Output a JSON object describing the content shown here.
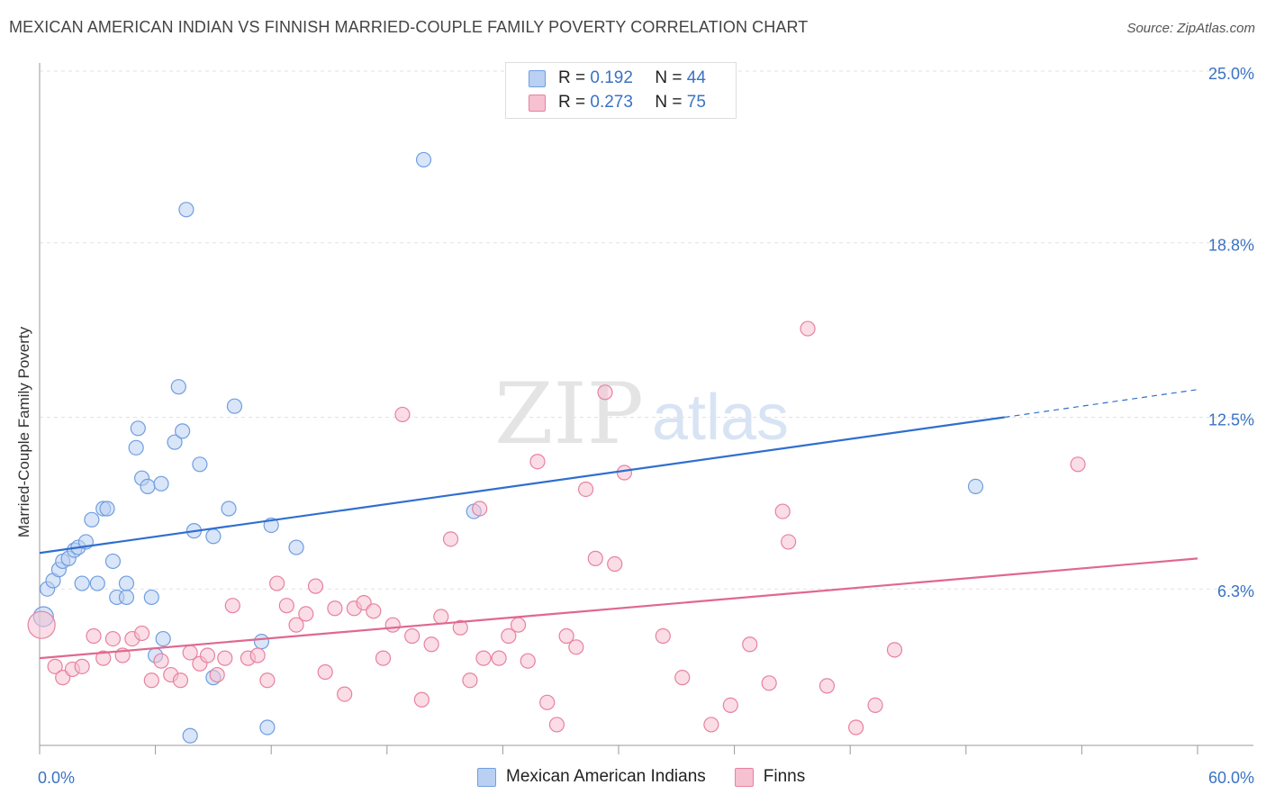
{
  "title": "MEXICAN AMERICAN INDIAN VS FINNISH MARRIED-COUPLE FAMILY POVERTY CORRELATION CHART",
  "source": "Source: ZipAtlas.com",
  "watermark": {
    "zip": "ZIP",
    "atlas": "atlas"
  },
  "legend": {
    "series1": {
      "r_label": "R =",
      "r_value": "0.192",
      "n_label": "N =",
      "n_value": "44"
    },
    "series2": {
      "r_label": "R =",
      "r_value": "0.273",
      "n_label": "N =",
      "n_value": "75"
    }
  },
  "chart_data": {
    "type": "scatter",
    "xlabel": "",
    "ylabel": "Married-Couple Family Poverty",
    "xlim": [
      0,
      60
    ],
    "ylim": [
      0,
      25
    ],
    "x_tick_labels": [
      "0.0%",
      "60.0%"
    ],
    "y_ticks": [
      6.3,
      12.5,
      18.8,
      25.0
    ],
    "y_tick_labels": [
      "6.3%",
      "12.5%",
      "18.8%",
      "25.0%"
    ],
    "grid": true,
    "legend_position": "bottom",
    "series": [
      {
        "name": "Mexican American Indians",
        "color": "#6f9ee0",
        "fill": "#b9d0f3",
        "trend": {
          "x0": 0,
          "y0": 7.6,
          "x1": 50,
          "y1": 12.5,
          "dash_to": [
            60,
            13.5
          ]
        },
        "points": [
          [
            0.2,
            5.3
          ],
          [
            0.4,
            6.3
          ],
          [
            0.7,
            6.6
          ],
          [
            1.0,
            7.0
          ],
          [
            1.2,
            7.3
          ],
          [
            1.5,
            7.4
          ],
          [
            1.8,
            7.7
          ],
          [
            2.0,
            7.8
          ],
          [
            2.2,
            6.5
          ],
          [
            2.4,
            8.0
          ],
          [
            2.7,
            8.8
          ],
          [
            3.0,
            6.5
          ],
          [
            3.3,
            9.2
          ],
          [
            3.5,
            9.2
          ],
          [
            3.8,
            7.3
          ],
          [
            4.0,
            6.0
          ],
          [
            4.5,
            6.0
          ],
          [
            4.5,
            6.5
          ],
          [
            5.0,
            11.4
          ],
          [
            5.1,
            12.1
          ],
          [
            5.3,
            10.3
          ],
          [
            5.6,
            10.0
          ],
          [
            5.8,
            6.0
          ],
          [
            6.0,
            3.9
          ],
          [
            6.3,
            10.1
          ],
          [
            6.4,
            4.5
          ],
          [
            7.0,
            11.6
          ],
          [
            7.2,
            13.6
          ],
          [
            7.4,
            12.0
          ],
          [
            7.6,
            20.0
          ],
          [
            7.8,
            1.0
          ],
          [
            8.0,
            8.4
          ],
          [
            8.3,
            10.8
          ],
          [
            9.0,
            3.1
          ],
          [
            9.0,
            8.2
          ],
          [
            9.8,
            9.2
          ],
          [
            10.1,
            12.9
          ],
          [
            11.5,
            4.4
          ],
          [
            11.8,
            1.3
          ],
          [
            12.0,
            8.6
          ],
          [
            13.3,
            7.8
          ],
          [
            19.9,
            21.8
          ],
          [
            22.5,
            9.1
          ],
          [
            48.5,
            10.0
          ]
        ]
      },
      {
        "name": "Finns",
        "color": "#e8819f",
        "fill": "#f6c1d1",
        "trend": {
          "x0": 0,
          "y0": 3.8,
          "x1": 60,
          "y1": 7.4
        },
        "points": [
          [
            0.1,
            5.0
          ],
          [
            0.8,
            3.5
          ],
          [
            1.2,
            3.1
          ],
          [
            1.7,
            3.4
          ],
          [
            2.2,
            3.5
          ],
          [
            2.8,
            4.6
          ],
          [
            3.3,
            3.8
          ],
          [
            3.8,
            4.5
          ],
          [
            4.3,
            3.9
          ],
          [
            4.8,
            4.5
          ],
          [
            5.3,
            4.7
          ],
          [
            5.8,
            3.0
          ],
          [
            6.3,
            3.7
          ],
          [
            6.8,
            3.2
          ],
          [
            7.3,
            3.0
          ],
          [
            7.8,
            4.0
          ],
          [
            8.3,
            3.6
          ],
          [
            8.7,
            3.9
          ],
          [
            9.2,
            3.2
          ],
          [
            9.6,
            3.8
          ],
          [
            10.0,
            5.7
          ],
          [
            10.8,
            3.8
          ],
          [
            11.3,
            3.9
          ],
          [
            11.8,
            3.0
          ],
          [
            12.3,
            6.5
          ],
          [
            12.8,
            5.7
          ],
          [
            13.3,
            5.0
          ],
          [
            13.8,
            5.4
          ],
          [
            14.3,
            6.4
          ],
          [
            14.8,
            3.3
          ],
          [
            15.3,
            5.6
          ],
          [
            15.8,
            2.5
          ],
          [
            16.3,
            5.6
          ],
          [
            16.8,
            5.8
          ],
          [
            17.3,
            5.5
          ],
          [
            17.8,
            3.8
          ],
          [
            18.3,
            5.0
          ],
          [
            18.8,
            12.6
          ],
          [
            19.3,
            4.6
          ],
          [
            19.8,
            2.3
          ],
          [
            20.3,
            4.3
          ],
          [
            20.8,
            5.3
          ],
          [
            21.3,
            8.1
          ],
          [
            21.8,
            4.9
          ],
          [
            22.3,
            3.0
          ],
          [
            22.8,
            9.2
          ],
          [
            23.0,
            3.8
          ],
          [
            23.8,
            3.8
          ],
          [
            24.3,
            4.6
          ],
          [
            24.8,
            5.0
          ],
          [
            25.3,
            3.7
          ],
          [
            25.8,
            10.9
          ],
          [
            26.3,
            2.2
          ],
          [
            26.8,
            1.4
          ],
          [
            27.3,
            4.6
          ],
          [
            27.8,
            4.2
          ],
          [
            28.3,
            9.9
          ],
          [
            28.8,
            7.4
          ],
          [
            29.3,
            13.4
          ],
          [
            29.8,
            7.2
          ],
          [
            30.3,
            10.5
          ],
          [
            32.3,
            4.6
          ],
          [
            33.3,
            3.1
          ],
          [
            34.8,
            1.4
          ],
          [
            35.8,
            2.1
          ],
          [
            36.8,
            4.3
          ],
          [
            37.8,
            2.9
          ],
          [
            38.5,
            9.1
          ],
          [
            38.8,
            8.0
          ],
          [
            39.8,
            15.7
          ],
          [
            40.8,
            2.8
          ],
          [
            42.3,
            1.3
          ],
          [
            43.3,
            2.1
          ],
          [
            44.3,
            4.1
          ],
          [
            53.8,
            10.8
          ]
        ]
      }
    ]
  }
}
